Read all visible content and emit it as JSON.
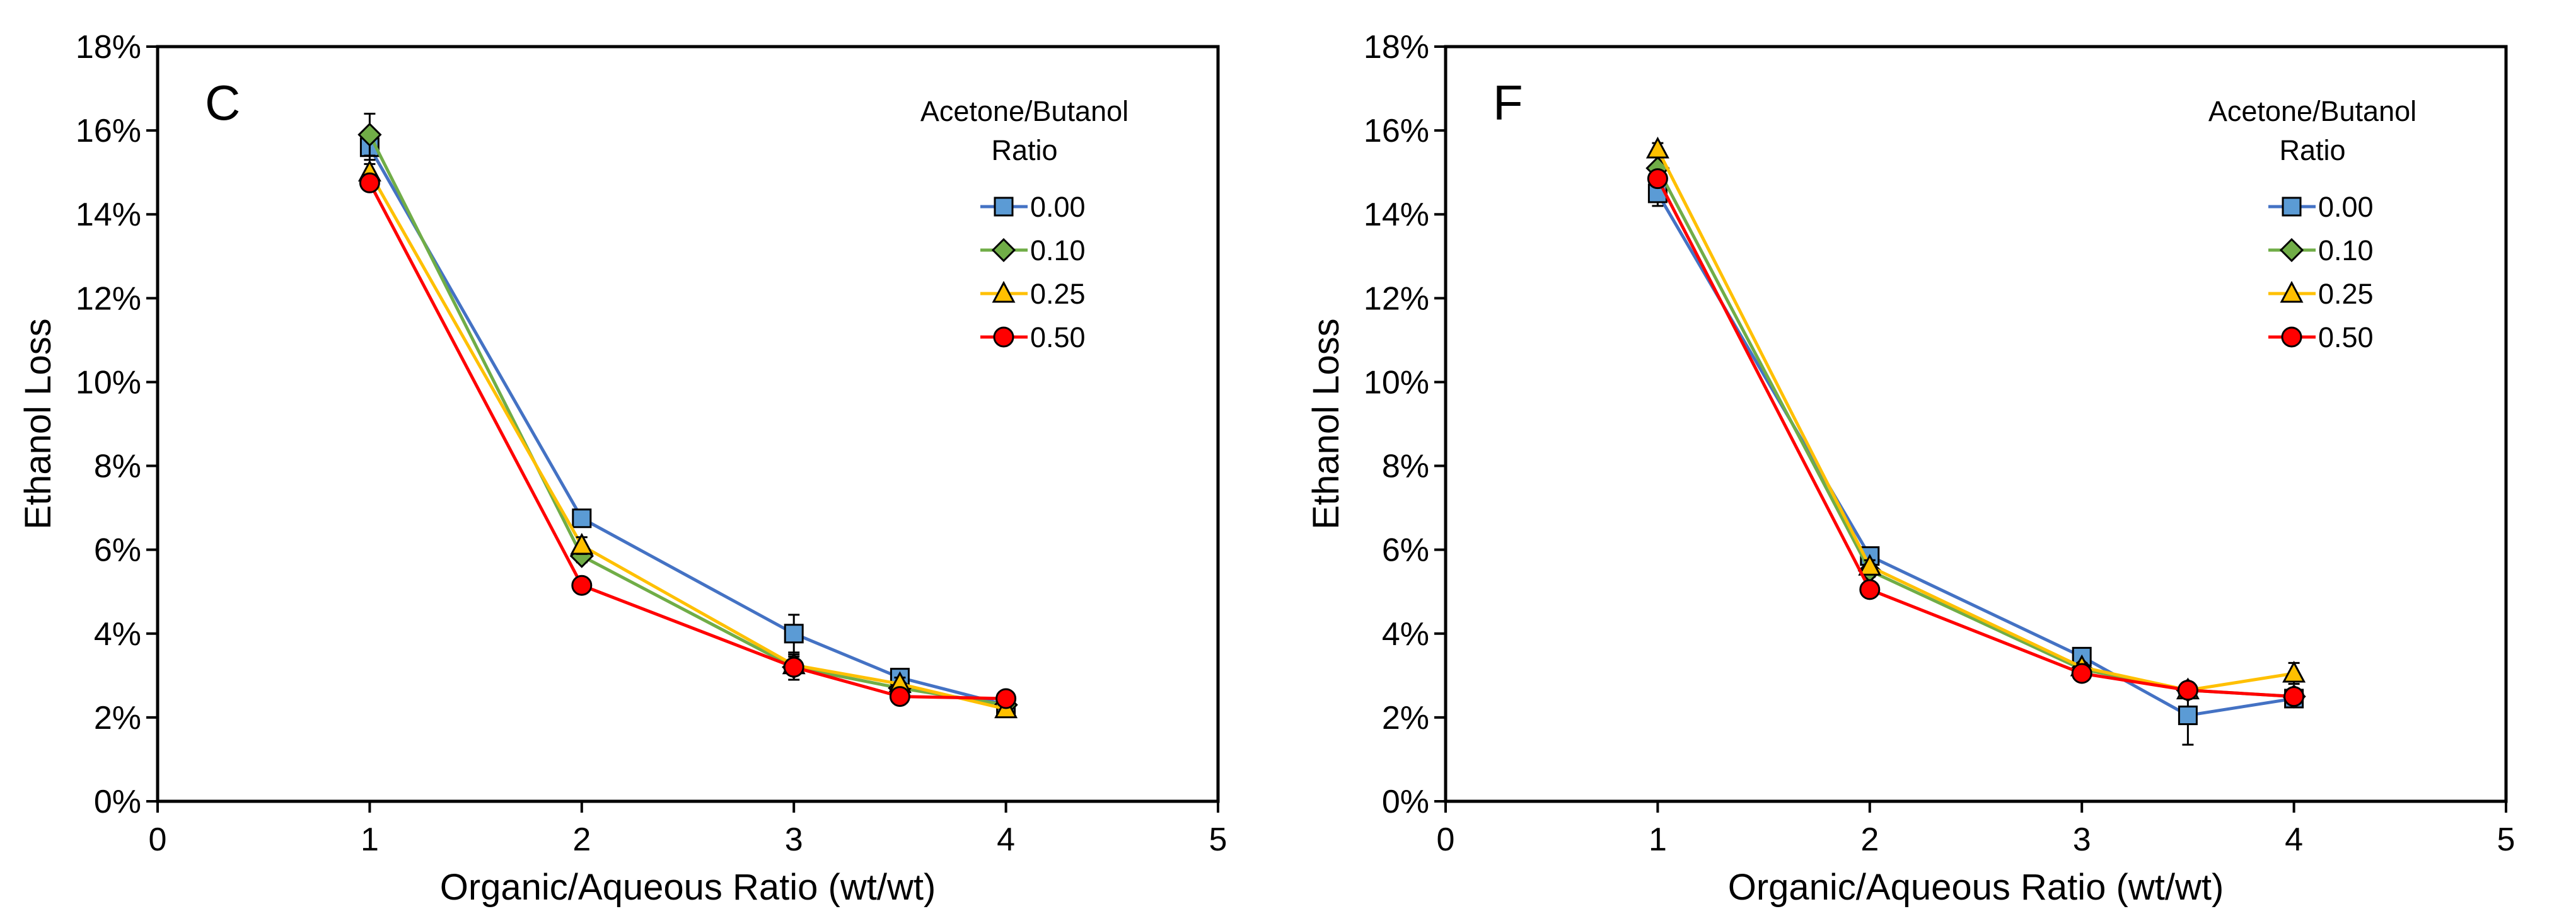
{
  "chart_data": [
    {
      "type": "line",
      "panel_label": "C",
      "xlabel": "Organic/Aqueous Ratio (wt/wt)",
      "ylabel": "Ethanol Loss",
      "xlim": [
        0,
        5
      ],
      "ylim": [
        0,
        18
      ],
      "x_ticks": [
        "0",
        "1",
        "2",
        "3",
        "4",
        "5"
      ],
      "y_ticks": [
        "0%",
        "2%",
        "4%",
        "6%",
        "8%",
        "10%",
        "12%",
        "14%",
        "16%",
        "18%"
      ],
      "legend_title": [
        "Acetone/Butanol",
        "Ratio"
      ],
      "legend_position": "top-right",
      "series": [
        {
          "name": "0.00",
          "color": "#4472C4",
          "fill": "#5B9BD5",
          "marker": "square",
          "x": [
            1,
            2,
            3,
            3.5,
            4
          ],
          "y": [
            15.6,
            6.75,
            4.0,
            2.95,
            2.3
          ],
          "err": [
            0.3,
            0.2,
            0.45,
            0.15,
            0.15
          ]
        },
        {
          "name": "0.10",
          "color": "#70AD47",
          "fill": "#70AD47",
          "marker": "diamond",
          "x": [
            1,
            2,
            3,
            3.5,
            4
          ],
          "y": [
            15.9,
            5.85,
            3.2,
            2.7,
            2.3
          ],
          "err": [
            0.5,
            0.15,
            0.3,
            0.1,
            0.15
          ]
        },
        {
          "name": "0.25",
          "color": "#FFC000",
          "fill": "#FFC000",
          "marker": "triangle",
          "x": [
            1,
            2,
            3,
            3.5,
            4
          ],
          "y": [
            15.0,
            6.1,
            3.25,
            2.8,
            2.2
          ],
          "err": [
            0.2,
            0.2,
            0.2,
            0.15,
            0.15
          ]
        },
        {
          "name": "0.50",
          "color": "#FF0000",
          "fill": "#FF0000",
          "marker": "circle",
          "x": [
            1,
            2,
            3,
            3.5,
            4
          ],
          "y": [
            14.75,
            5.15,
            3.2,
            2.5,
            2.45
          ],
          "err": [
            0.1,
            0.1,
            0.1,
            0.1,
            0.1
          ]
        }
      ]
    },
    {
      "type": "line",
      "panel_label": "F",
      "xlabel": "Organic/Aqueous Ratio (wt/wt)",
      "ylabel": "Ethanol Loss",
      "xlim": [
        0,
        5
      ],
      "ylim": [
        0,
        18
      ],
      "x_ticks": [
        "0",
        "1",
        "2",
        "3",
        "4",
        "5"
      ],
      "y_ticks": [
        "0%",
        "2%",
        "4%",
        "6%",
        "8%",
        "10%",
        "12%",
        "14%",
        "16%",
        "18%"
      ],
      "legend_title": [
        "Acetone/Butanol",
        "Ratio"
      ],
      "legend_position": "top-right",
      "series": [
        {
          "name": "0.00",
          "color": "#4472C4",
          "fill": "#5B9BD5",
          "marker": "square",
          "x": [
            1,
            2,
            3,
            3.5,
            4
          ],
          "y": [
            14.5,
            5.85,
            3.45,
            2.05,
            2.45
          ],
          "err": [
            0.3,
            0.2,
            0.1,
            0.7,
            0.2
          ]
        },
        {
          "name": "0.10",
          "color": "#70AD47",
          "fill": "#70AD47",
          "marker": "diamond",
          "x": [
            1,
            2,
            3,
            3.5,
            4
          ],
          "y": [
            15.1,
            5.5,
            3.15,
            2.65,
            2.5
          ],
          "err": [
            0.3,
            0.15,
            0.1,
            0.1,
            0.1
          ]
        },
        {
          "name": "0.25",
          "color": "#FFC000",
          "fill": "#FFC000",
          "marker": "triangle",
          "x": [
            1,
            2,
            3,
            3.5,
            4
          ],
          "y": [
            15.55,
            5.6,
            3.2,
            2.65,
            3.05
          ],
          "err": [
            0.15,
            0.15,
            0.1,
            0.1,
            0.25
          ]
        },
        {
          "name": "0.50",
          "color": "#FF0000",
          "fill": "#FF0000",
          "marker": "circle",
          "x": [
            1,
            2,
            3,
            3.5,
            4
          ],
          "y": [
            14.85,
            5.05,
            3.05,
            2.65,
            2.5
          ],
          "err": [
            0.1,
            0.1,
            0.1,
            0.1,
            0.1
          ]
        }
      ]
    }
  ]
}
